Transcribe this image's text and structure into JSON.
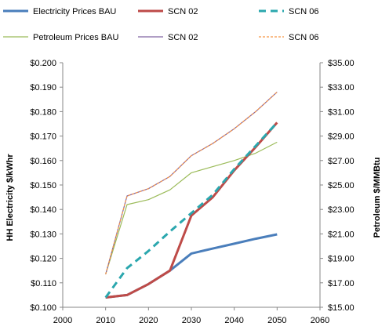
{
  "chart_data": {
    "type": "line",
    "x_axis": {
      "min": 2000,
      "max": 2060,
      "step": 10,
      "ticks": [
        "2000",
        "2010",
        "2020",
        "2030",
        "2040",
        "2050",
        "2060"
      ]
    },
    "y_left": {
      "label": "HH Electricity $/kWhr",
      "min": 0.1,
      "max": 0.2,
      "step": 0.01,
      "ticks": [
        "$0.100",
        "$0.110",
        "$0.120",
        "$0.130",
        "$0.140",
        "$0.150",
        "$0.160",
        "$0.170",
        "$0.180",
        "$0.190",
        "$0.200"
      ]
    },
    "y_right": {
      "label": "Petroleum $/MMBtu",
      "min": 15,
      "max": 35,
      "step": 2,
      "ticks": [
        "$15.00",
        "$17.00",
        "$19.00",
        "$21.00",
        "$23.00",
        "$25.00",
        "$27.00",
        "$29.00",
        "$31.00",
        "$33.00",
        "$35.00"
      ]
    },
    "legend_placement": "top",
    "grid": false,
    "series": [
      {
        "name": "Electricity Prices BAU",
        "axis": "left",
        "color": "#4a7ebb",
        "width": 3,
        "dash": "",
        "x": [
          2010,
          2015,
          2020,
          2025,
          2030,
          2035,
          2040,
          2045,
          2050
        ],
        "y": [
          0.104,
          0.105,
          0.1095,
          0.115,
          0.122,
          0.124,
          0.126,
          0.128,
          0.1298
        ]
      },
      {
        "name": "SCN 02",
        "axis": "left",
        "color": "#be4b48",
        "width": 3,
        "dash": "",
        "x": [
          2010,
          2015,
          2020,
          2025,
          2030,
          2035,
          2040,
          2045,
          2050
        ],
        "y": [
          0.104,
          0.105,
          0.1095,
          0.115,
          0.1375,
          0.145,
          0.156,
          0.1655,
          0.1755
        ]
      },
      {
        "name": "SCN 06",
        "axis": "left",
        "color": "#2ba7ae",
        "width": 3,
        "dash": "9,6",
        "x": [
          2010,
          2015,
          2020,
          2025,
          2030,
          2035,
          2040,
          2045,
          2050
        ],
        "y": [
          0.104,
          0.116,
          0.123,
          0.131,
          0.1385,
          0.146,
          0.1565,
          0.166,
          0.1755
        ]
      },
      {
        "name": "Petroleum Prices BAU",
        "axis": "right",
        "color": "#9bbb59",
        "width": 1.2,
        "dash": "",
        "x": [
          2010,
          2015,
          2020,
          2025,
          2030,
          2035,
          2040,
          2045,
          2050
        ],
        "y": [
          17.7,
          23.4,
          23.8,
          24.6,
          26.0,
          26.5,
          27.0,
          27.6,
          28.5
        ]
      },
      {
        "name": "SCN 02",
        "axis": "right",
        "color": "#8064a2",
        "width": 1.2,
        "dash": "",
        "x": [
          2010,
          2015,
          2020,
          2025,
          2030,
          2035,
          2040,
          2045,
          2050
        ],
        "y": [
          17.7,
          24.1,
          24.7,
          25.7,
          27.4,
          28.4,
          29.6,
          31.0,
          32.6
        ]
      },
      {
        "name": "SCN 06",
        "axis": "right",
        "color": "#f79646",
        "width": 1.2,
        "dash": "3,2",
        "x": [
          2010,
          2015,
          2020,
          2025,
          2030,
          2035,
          2040,
          2045,
          2050
        ],
        "y": [
          17.7,
          24.1,
          24.7,
          25.7,
          27.4,
          28.4,
          29.6,
          31.0,
          32.6
        ]
      }
    ]
  }
}
